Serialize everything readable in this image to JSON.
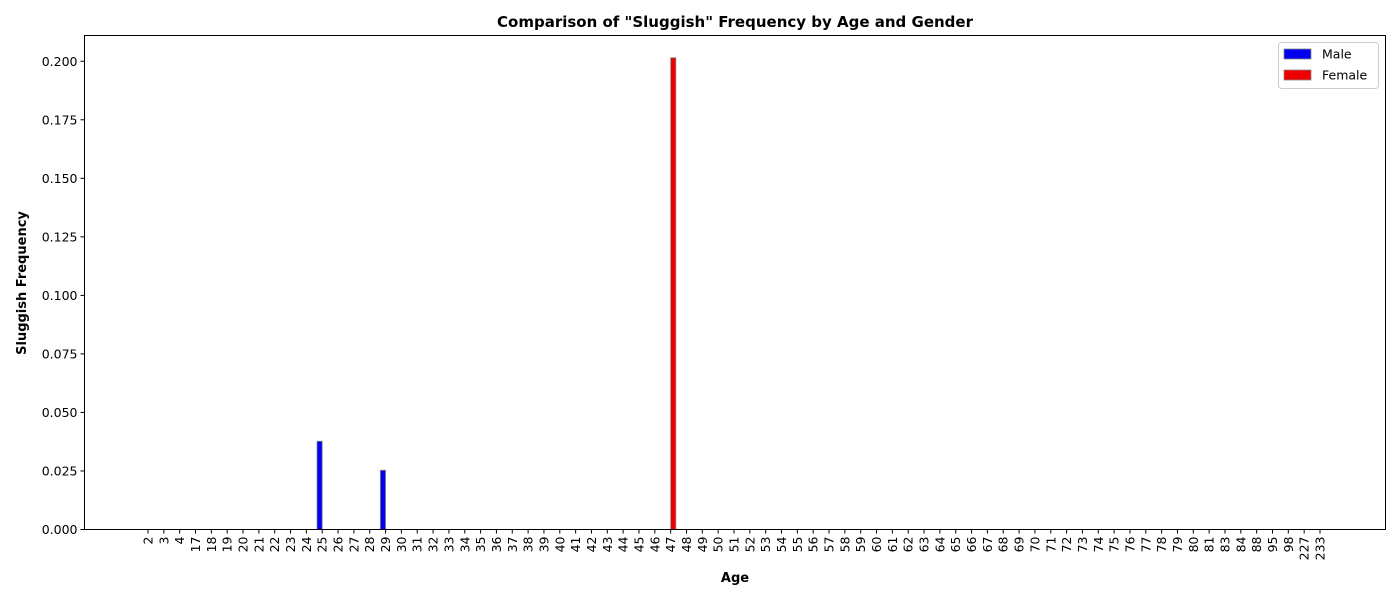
{
  "chart_data": {
    "type": "bar",
    "title": "Comparison of \"Sluggish\" Frequency by Age and Gender",
    "xlabel": "Age",
    "ylabel": "Sluggish Frequency",
    "ylim": [
      0,
      0.211
    ],
    "yticks": [
      "0.000",
      "0.025",
      "0.050",
      "0.075",
      "0.100",
      "0.125",
      "0.150",
      "0.175",
      "0.200"
    ],
    "legend_position": "top-right",
    "grid": false,
    "categories": [
      "2",
      "3",
      "4",
      "17",
      "18",
      "19",
      "20",
      "21",
      "22",
      "23",
      "24",
      "25",
      "26",
      "27",
      "28",
      "29",
      "30",
      "31",
      "32",
      "33",
      "34",
      "35",
      "36",
      "37",
      "38",
      "39",
      "40",
      "41",
      "42",
      "43",
      "44",
      "45",
      "46",
      "47",
      "48",
      "49",
      "50",
      "51",
      "52",
      "53",
      "54",
      "55",
      "56",
      "57",
      "58",
      "59",
      "60",
      "61",
      "62",
      "63",
      "64",
      "65",
      "66",
      "67",
      "68",
      "69",
      "70",
      "71",
      "72",
      "73",
      "74",
      "75",
      "76",
      "77",
      "78",
      "79",
      "80",
      "81",
      "83",
      "84",
      "88",
      "95",
      "98",
      "227",
      "233"
    ],
    "series": [
      {
        "name": "Male",
        "color": "#0000ee",
        "values": [
          0,
          0,
          0,
          0,
          0,
          0,
          0,
          0,
          0,
          0,
          0,
          0.0377,
          0,
          0,
          0,
          0.0253,
          0,
          0,
          0,
          0,
          0,
          0,
          0,
          0,
          0,
          0,
          0,
          0,
          0,
          0,
          0,
          0,
          0,
          0,
          0,
          0,
          0,
          0,
          0,
          0,
          0,
          0,
          0,
          0,
          0,
          0,
          0,
          0,
          0,
          0,
          0,
          0,
          0,
          0,
          0,
          0,
          0,
          0,
          0,
          0,
          0,
          0,
          0,
          0,
          0,
          0,
          0,
          0,
          0,
          0,
          0,
          0,
          0,
          0,
          0
        ]
      },
      {
        "name": "Female",
        "color": "#ee0000",
        "values": [
          0,
          0,
          0,
          0,
          0,
          0,
          0,
          0,
          0,
          0,
          0,
          0,
          0,
          0,
          0,
          0,
          0,
          0,
          0,
          0,
          0,
          0,
          0,
          0,
          0,
          0,
          0,
          0,
          0,
          0,
          0,
          0,
          0,
          0.2015,
          0,
          0,
          0,
          0,
          0,
          0,
          0,
          0,
          0,
          0,
          0,
          0,
          0,
          0,
          0,
          0,
          0,
          0,
          0,
          0,
          0,
          0,
          0,
          0,
          0,
          0,
          0,
          0,
          0,
          0,
          0,
          0,
          0,
          0,
          0,
          0,
          0,
          0,
          0,
          0,
          0
        ]
      }
    ]
  }
}
